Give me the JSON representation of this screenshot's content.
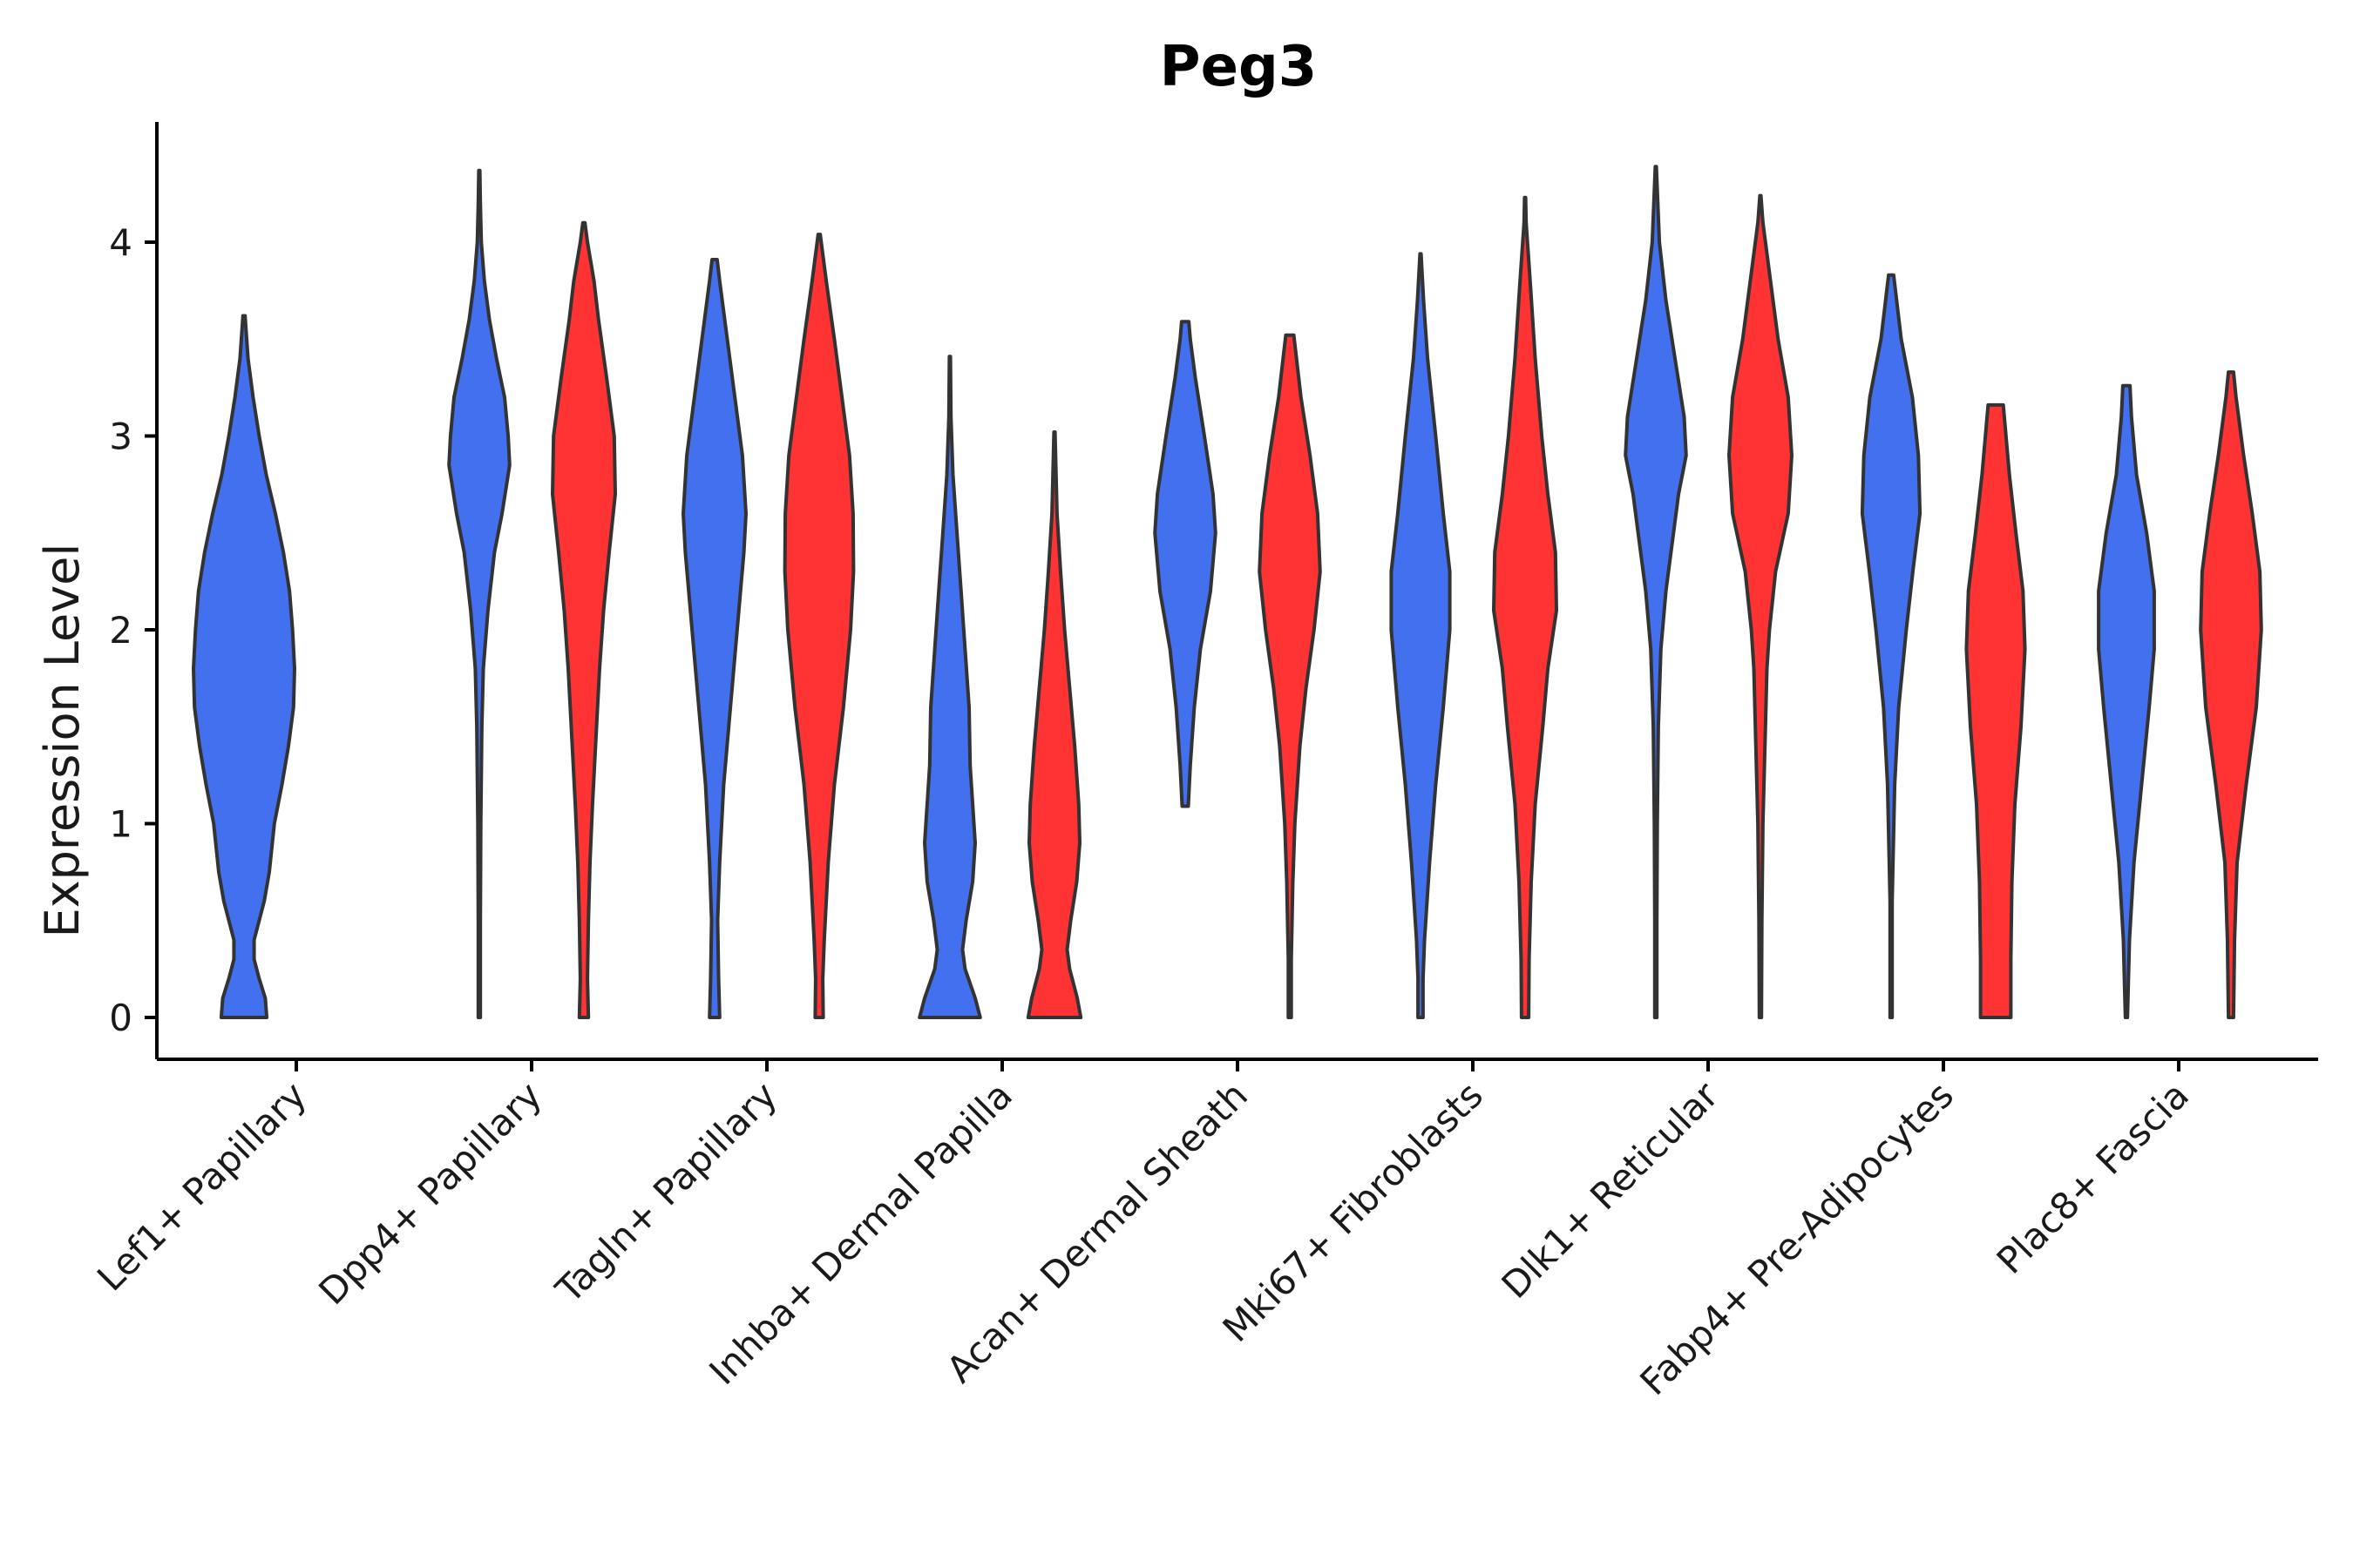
{
  "chart_data": {
    "type": "violin",
    "title": "Peg3",
    "xlabel": "",
    "ylabel": "Expression Level",
    "ylim": [
      -0.22,
      4.6
    ],
    "yticks": [
      0,
      1,
      2,
      3,
      4
    ],
    "colors": {
      "group_a": "#4370EE",
      "group_b": "#FF3333",
      "outline": "#333333"
    },
    "categories": [
      "Lef1+ Papillary",
      "Dpp4+ Papillary",
      "Tagln+ Papillary",
      "Inhba+ Dermal Papilla",
      "Acan+ Dermal Sheath",
      "Mki67+ Fibroblasts",
      "Dlk1+ Reticular",
      "Fabp4+ Pre-Adipocytes",
      "Plac8+ Fascia"
    ],
    "violins": [
      {
        "category": 0,
        "group": "a",
        "min": 0,
        "max": 3.62,
        "density": [
          [
            0,
            0.45
          ],
          [
            0.1,
            0.42
          ],
          [
            0.2,
            0.3
          ],
          [
            0.3,
            0.2
          ],
          [
            0.4,
            0.2
          ],
          [
            0.5,
            0.3
          ],
          [
            0.6,
            0.4
          ],
          [
            0.75,
            0.5
          ],
          [
            1.0,
            0.6
          ],
          [
            1.2,
            0.75
          ],
          [
            1.4,
            0.88
          ],
          [
            1.6,
            0.98
          ],
          [
            1.8,
            1.0
          ],
          [
            2.0,
            0.96
          ],
          [
            2.2,
            0.9
          ],
          [
            2.4,
            0.78
          ],
          [
            2.6,
            0.62
          ],
          [
            2.8,
            0.44
          ],
          [
            3.0,
            0.3
          ],
          [
            3.2,
            0.18
          ],
          [
            3.4,
            0.08
          ],
          [
            3.62,
            0.02
          ]
        ]
      },
      {
        "category": 1,
        "group": "a",
        "min": 0,
        "max": 4.37,
        "density": [
          [
            0,
            0.02
          ],
          [
            0.5,
            0.02
          ],
          [
            1.0,
            0.03
          ],
          [
            1.5,
            0.05
          ],
          [
            1.8,
            0.08
          ],
          [
            2.1,
            0.17
          ],
          [
            2.4,
            0.3
          ],
          [
            2.6,
            0.45
          ],
          [
            2.85,
            0.6
          ],
          [
            3.0,
            0.57
          ],
          [
            3.2,
            0.5
          ],
          [
            3.4,
            0.34
          ],
          [
            3.6,
            0.2
          ],
          [
            3.8,
            0.1
          ],
          [
            4.0,
            0.04
          ],
          [
            4.2,
            0.02
          ],
          [
            4.37,
            0.01
          ]
        ]
      },
      {
        "category": 1,
        "group": "b",
        "min": 0,
        "max": 4.1,
        "density": [
          [
            0,
            0.09
          ],
          [
            0.2,
            0.07
          ],
          [
            0.5,
            0.09
          ],
          [
            0.8,
            0.12
          ],
          [
            1.1,
            0.17
          ],
          [
            1.5,
            0.25
          ],
          [
            1.8,
            0.31
          ],
          [
            2.1,
            0.39
          ],
          [
            2.4,
            0.5
          ],
          [
            2.7,
            0.62
          ],
          [
            3.0,
            0.6
          ],
          [
            3.3,
            0.45
          ],
          [
            3.6,
            0.29
          ],
          [
            3.8,
            0.2
          ],
          [
            4.0,
            0.07
          ],
          [
            4.1,
            0.02
          ]
        ]
      },
      {
        "category": 2,
        "group": "a",
        "min": 0,
        "max": 3.91,
        "density": [
          [
            0,
            0.1
          ],
          [
            0.2,
            0.08
          ],
          [
            0.5,
            0.06
          ],
          [
            0.8,
            0.1
          ],
          [
            1.2,
            0.18
          ],
          [
            1.5,
            0.28
          ],
          [
            1.8,
            0.38
          ],
          [
            2.1,
            0.48
          ],
          [
            2.4,
            0.58
          ],
          [
            2.6,
            0.62
          ],
          [
            2.9,
            0.55
          ],
          [
            3.2,
            0.4
          ],
          [
            3.5,
            0.25
          ],
          [
            3.8,
            0.1
          ],
          [
            3.91,
            0.05
          ]
        ]
      },
      {
        "category": 2,
        "group": "b",
        "min": 0,
        "max": 4.04,
        "density": [
          [
            0,
            0.08
          ],
          [
            0.2,
            0.07
          ],
          [
            0.4,
            0.1
          ],
          [
            0.8,
            0.18
          ],
          [
            1.2,
            0.3
          ],
          [
            1.6,
            0.48
          ],
          [
            2.0,
            0.62
          ],
          [
            2.3,
            0.68
          ],
          [
            2.6,
            0.67
          ],
          [
            2.9,
            0.6
          ],
          [
            3.2,
            0.45
          ],
          [
            3.5,
            0.3
          ],
          [
            3.8,
            0.14
          ],
          [
            4.04,
            0.02
          ]
        ]
      },
      {
        "category": 3,
        "group": "a",
        "min": 0,
        "max": 3.41,
        "density": [
          [
            0,
            0.6
          ],
          [
            0.1,
            0.5
          ],
          [
            0.25,
            0.3
          ],
          [
            0.35,
            0.25
          ],
          [
            0.5,
            0.32
          ],
          [
            0.7,
            0.45
          ],
          [
            0.9,
            0.5
          ],
          [
            1.1,
            0.45
          ],
          [
            1.3,
            0.4
          ],
          [
            1.6,
            0.38
          ],
          [
            1.9,
            0.3
          ],
          [
            2.2,
            0.22
          ],
          [
            2.5,
            0.14
          ],
          [
            2.8,
            0.06
          ],
          [
            3.1,
            0.02
          ],
          [
            3.41,
            0.01
          ]
        ]
      },
      {
        "category": 3,
        "group": "b",
        "min": 0,
        "max": 3.02,
        "density": [
          [
            0,
            0.52
          ],
          [
            0.1,
            0.45
          ],
          [
            0.25,
            0.3
          ],
          [
            0.35,
            0.25
          ],
          [
            0.5,
            0.32
          ],
          [
            0.7,
            0.44
          ],
          [
            0.9,
            0.5
          ],
          [
            1.1,
            0.48
          ],
          [
            1.4,
            0.4
          ],
          [
            1.7,
            0.3
          ],
          [
            2.0,
            0.2
          ],
          [
            2.3,
            0.12
          ],
          [
            2.6,
            0.05
          ],
          [
            3.02,
            0.01
          ]
        ]
      },
      {
        "category": 4,
        "group": "a",
        "min": 1.09,
        "max": 3.59,
        "density": [
          [
            1.09,
            0.06
          ],
          [
            1.3,
            0.1
          ],
          [
            1.6,
            0.18
          ],
          [
            1.9,
            0.3
          ],
          [
            2.2,
            0.5
          ],
          [
            2.5,
            0.6
          ],
          [
            2.7,
            0.55
          ],
          [
            3.0,
            0.38
          ],
          [
            3.3,
            0.2
          ],
          [
            3.5,
            0.1
          ],
          [
            3.59,
            0.07
          ]
        ]
      },
      {
        "category": 4,
        "group": "b",
        "min": 0,
        "max": 3.52,
        "density": [
          [
            0,
            0.03
          ],
          [
            0.3,
            0.03
          ],
          [
            0.7,
            0.06
          ],
          [
            1.0,
            0.1
          ],
          [
            1.4,
            0.2
          ],
          [
            1.7,
            0.32
          ],
          [
            2.0,
            0.48
          ],
          [
            2.3,
            0.6
          ],
          [
            2.6,
            0.55
          ],
          [
            2.9,
            0.4
          ],
          [
            3.2,
            0.22
          ],
          [
            3.52,
            0.08
          ]
        ]
      },
      {
        "category": 5,
        "group": "a",
        "min": 0,
        "max": 3.94,
        "density": [
          [
            0,
            0.05
          ],
          [
            0.2,
            0.05
          ],
          [
            0.4,
            0.08
          ],
          [
            0.8,
            0.18
          ],
          [
            1.2,
            0.3
          ],
          [
            1.6,
            0.45
          ],
          [
            2.0,
            0.58
          ],
          [
            2.3,
            0.58
          ],
          [
            2.6,
            0.45
          ],
          [
            3.0,
            0.3
          ],
          [
            3.4,
            0.14
          ],
          [
            3.7,
            0.06
          ],
          [
            3.94,
            0.01
          ]
        ]
      },
      {
        "category": 5,
        "group": "b",
        "min": 0,
        "max": 4.23,
        "density": [
          [
            0,
            0.07
          ],
          [
            0.3,
            0.08
          ],
          [
            0.7,
            0.12
          ],
          [
            1.1,
            0.2
          ],
          [
            1.5,
            0.35
          ],
          [
            1.8,
            0.45
          ],
          [
            2.1,
            0.62
          ],
          [
            2.4,
            0.6
          ],
          [
            2.7,
            0.45
          ],
          [
            3.0,
            0.33
          ],
          [
            3.4,
            0.2
          ],
          [
            3.8,
            0.1
          ],
          [
            4.1,
            0.02
          ],
          [
            4.23,
            0.01
          ]
        ]
      },
      {
        "category": 6,
        "group": "a",
        "min": 0,
        "max": 4.39,
        "density": [
          [
            0,
            0.02
          ],
          [
            0.5,
            0.02
          ],
          [
            1.0,
            0.03
          ],
          [
            1.5,
            0.05
          ],
          [
            1.9,
            0.1
          ],
          [
            2.2,
            0.2
          ],
          [
            2.5,
            0.35
          ],
          [
            2.7,
            0.45
          ],
          [
            2.9,
            0.6
          ],
          [
            3.1,
            0.56
          ],
          [
            3.4,
            0.38
          ],
          [
            3.7,
            0.2
          ],
          [
            4.0,
            0.07
          ],
          [
            4.39,
            0.01
          ]
        ]
      },
      {
        "category": 6,
        "group": "b",
        "min": 0,
        "max": 4.24,
        "density": [
          [
            0,
            0.02
          ],
          [
            0.5,
            0.03
          ],
          [
            1.0,
            0.05
          ],
          [
            1.5,
            0.1
          ],
          [
            1.8,
            0.13
          ],
          [
            2.0,
            0.18
          ],
          [
            2.3,
            0.3
          ],
          [
            2.6,
            0.55
          ],
          [
            2.9,
            0.62
          ],
          [
            3.2,
            0.55
          ],
          [
            3.5,
            0.35
          ],
          [
            3.8,
            0.2
          ],
          [
            4.1,
            0.05
          ],
          [
            4.24,
            0.01
          ]
        ]
      },
      {
        "category": 7,
        "group": "a",
        "min": 0,
        "max": 3.83,
        "density": [
          [
            0,
            0.02
          ],
          [
            0.6,
            0.02
          ],
          [
            1.2,
            0.07
          ],
          [
            1.6,
            0.15
          ],
          [
            2.0,
            0.3
          ],
          [
            2.3,
            0.43
          ],
          [
            2.6,
            0.57
          ],
          [
            2.9,
            0.54
          ],
          [
            3.2,
            0.42
          ],
          [
            3.5,
            0.2
          ],
          [
            3.83,
            0.05
          ]
        ]
      },
      {
        "category": 7,
        "group": "b",
        "min": 0,
        "max": 3.16,
        "density": [
          [
            0,
            0.3
          ],
          [
            0.3,
            0.3
          ],
          [
            0.7,
            0.32
          ],
          [
            1.1,
            0.38
          ],
          [
            1.5,
            0.5
          ],
          [
            1.9,
            0.58
          ],
          [
            2.2,
            0.54
          ],
          [
            2.5,
            0.4
          ],
          [
            2.8,
            0.27
          ],
          [
            3.16,
            0.15
          ]
        ]
      },
      {
        "category": 8,
        "group": "a",
        "min": 0,
        "max": 3.26,
        "density": [
          [
            0,
            0.02
          ],
          [
            0.4,
            0.06
          ],
          [
            0.8,
            0.15
          ],
          [
            1.2,
            0.3
          ],
          [
            1.6,
            0.45
          ],
          [
            1.9,
            0.55
          ],
          [
            2.2,
            0.55
          ],
          [
            2.5,
            0.4
          ],
          [
            2.8,
            0.2
          ],
          [
            3.1,
            0.1
          ],
          [
            3.26,
            0.07
          ]
        ]
      },
      {
        "category": 8,
        "group": "b",
        "min": 0,
        "max": 3.33,
        "density": [
          [
            0,
            0.05
          ],
          [
            0.4,
            0.07
          ],
          [
            0.8,
            0.12
          ],
          [
            1.2,
            0.3
          ],
          [
            1.6,
            0.5
          ],
          [
            2.0,
            0.6
          ],
          [
            2.3,
            0.57
          ],
          [
            2.6,
            0.42
          ],
          [
            2.9,
            0.25
          ],
          [
            3.2,
            0.1
          ],
          [
            3.33,
            0.05
          ]
        ]
      }
    ]
  }
}
